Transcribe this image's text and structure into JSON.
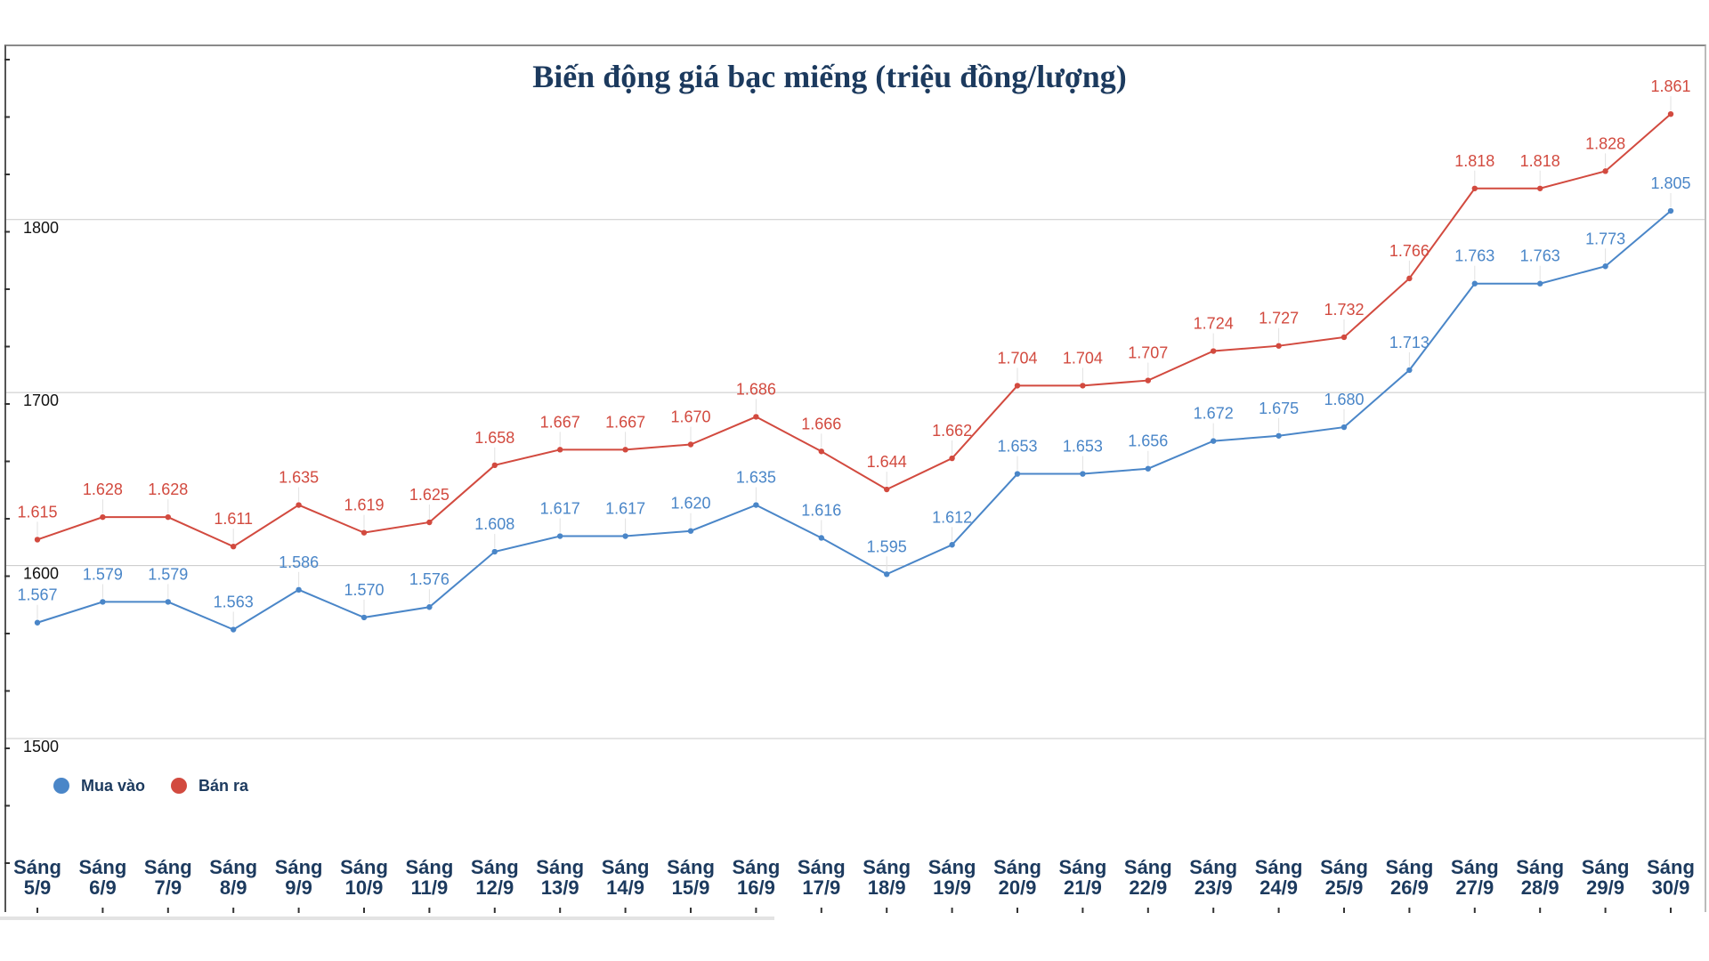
{
  "chart_data": {
    "type": "line",
    "title": "Biến động giá bạc miếng (triệu đồng/lượng)",
    "xlabel": "",
    "ylabel": "",
    "ylim": [
      1500,
      1900
    ],
    "yticks": [
      "1500",
      "1600",
      "1700",
      "1800"
    ],
    "grid": true,
    "legend_position": "bottom-left",
    "categories": [
      "Sáng|5/9",
      "Sáng|6/9",
      "Sáng|7/9",
      "Sáng|8/9",
      "Sáng|9/9",
      "Sáng|10/9",
      "Sáng|11/9",
      "Sáng|12/9",
      "Sáng|13/9",
      "Sáng|14/9",
      "Sáng|15/9",
      "Sáng|16/9",
      "Sáng|17/9",
      "Sáng|18/9",
      "Sáng|19/9",
      "Sáng|20/9",
      "Sáng|21/9",
      "Sáng|22/9",
      "Sáng|23/9",
      "Sáng|24/9",
      "Sáng|25/9",
      "Sáng|26/9",
      "Sáng|27/9",
      "Sáng|28/9",
      "Sáng|29/9",
      "Sáng|30/9"
    ],
    "series": [
      {
        "name": "Mua vào",
        "color": "#4a86c8",
        "values": [
          1567,
          1579,
          1579,
          1563,
          1586,
          1570,
          1576,
          1608,
          1617,
          1617,
          1620,
          1635,
          1616,
          1595,
          1612,
          1653,
          1653,
          1656,
          1672,
          1675,
          1680,
          1713,
          1763,
          1763,
          1773,
          1805
        ],
        "labels": [
          "1.567",
          "1.579",
          "1.579",
          "1.563",
          "1.586",
          "1.570",
          "1.576",
          "1.608",
          "1.617",
          "1.617",
          "1.620",
          "1.635",
          "1.616",
          "1.595",
          "1.612",
          "1.653",
          "1.653",
          "1.656",
          "1.672",
          "1.675",
          "1.680",
          "1.713",
          "1.763",
          "1.763",
          "1.773",
          "1.805"
        ]
      },
      {
        "name": "Bán ra",
        "color": "#d24a3f",
        "values": [
          1615,
          1628,
          1628,
          1611,
          1635,
          1619,
          1625,
          1658,
          1667,
          1667,
          1670,
          1686,
          1666,
          1644,
          1662,
          1704,
          1704,
          1707,
          1724,
          1727,
          1732,
          1766,
          1818,
          1818,
          1828,
          1861
        ],
        "labels": [
          "1.615",
          "1.628",
          "1.628",
          "1.611",
          "1.635",
          "1.619",
          "1.625",
          "1.658",
          "1.667",
          "1.667",
          "1.670",
          "1.686",
          "1.666",
          "1.644",
          "1.662",
          "1.704",
          "1.704",
          "1.707",
          "1.724",
          "1.727",
          "1.732",
          "1.766",
          "1.818",
          "1.818",
          "1.828",
          "1.861"
        ]
      }
    ]
  }
}
